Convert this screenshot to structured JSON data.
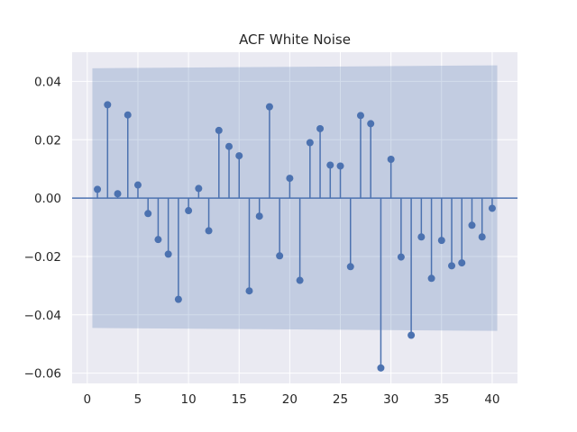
{
  "chart_data": {
    "type": "scatter",
    "title": "ACF White Noise",
    "xlabel": "",
    "ylabel": "",
    "xlim": [
      -1.5,
      42.5
    ],
    "ylim": [
      -0.0635,
      0.05
    ],
    "xticks": [
      0,
      5,
      10,
      15,
      20,
      25,
      30,
      35,
      40
    ],
    "yticks": [
      -0.06,
      -0.04,
      -0.02,
      0.0,
      0.02,
      0.04
    ],
    "ytick_labels": [
      "−0.06",
      "−0.04",
      "−0.02",
      "0.00",
      "0.02",
      "0.04"
    ],
    "grid": true,
    "lags": [
      1,
      2,
      3,
      4,
      5,
      6,
      7,
      8,
      9,
      10,
      11,
      12,
      13,
      14,
      15,
      16,
      17,
      18,
      19,
      20,
      21,
      22,
      23,
      24,
      25,
      26,
      27,
      28,
      29,
      30,
      31,
      32,
      33,
      34,
      35,
      36,
      37,
      38,
      39,
      40
    ],
    "values": [
      0.003,
      0.032,
      0.0015,
      0.0285,
      0.0045,
      -0.0053,
      -0.0142,
      -0.0192,
      -0.0347,
      -0.0043,
      0.0033,
      -0.0112,
      0.0232,
      0.0177,
      0.0145,
      -0.0318,
      -0.0062,
      0.0313,
      -0.0198,
      0.0068,
      -0.0282,
      0.019,
      0.0238,
      0.0113,
      0.011,
      -0.0235,
      0.0283,
      0.0255,
      -0.0582,
      0.0133,
      -0.0202,
      -0.047,
      -0.0133,
      -0.0275,
      -0.0145,
      -0.0232,
      -0.0222,
      -0.0093,
      -0.0133,
      -0.0035
    ],
    "confidence_band": {
      "x": [
        0.5,
        40.5
      ],
      "upper": [
        0.0445,
        0.0455
      ],
      "lower": [
        -0.0445,
        -0.0455
      ]
    },
    "colors": {
      "marker": "#4c72b0",
      "band": "#4c72b0",
      "background": "#eaeaf2",
      "grid": "#ffffff"
    }
  }
}
